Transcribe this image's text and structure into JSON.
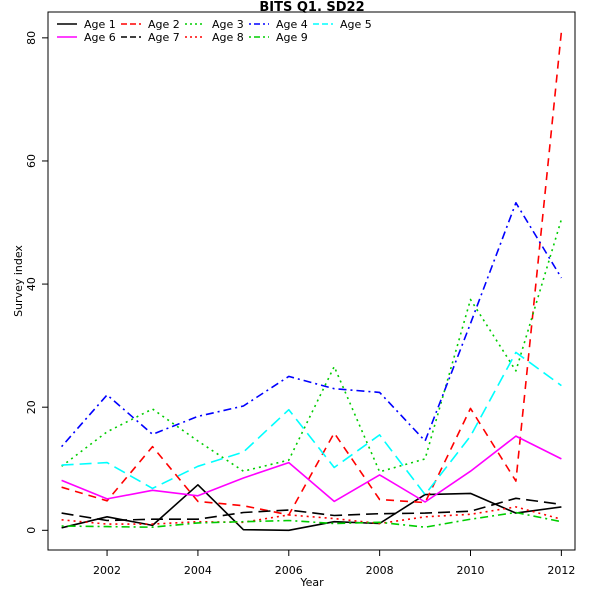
{
  "chart_data": {
    "type": "line",
    "title": "BITS Q1. SD22",
    "xlabel": "Year",
    "ylabel": "Survey index",
    "xlim": [
      2000.7,
      2012.3
    ],
    "ylim": [
      -3.2,
      84.2
    ],
    "x_ticks": [
      2002,
      2004,
      2006,
      2008,
      2010,
      2012
    ],
    "y_ticks": [
      0,
      20,
      40,
      60,
      80
    ],
    "grid": false,
    "legend_position": "top-left",
    "x": [
      2001,
      2002,
      2003,
      2004,
      2005,
      2006,
      2007,
      2008,
      2009,
      2010,
      2011,
      2012
    ],
    "series": [
      {
        "name": "Age 1",
        "color": "#000000",
        "dash": "solid",
        "values": [
          0.4,
          2.2,
          0.8,
          7.4,
          0.1,
          0.0,
          1.4,
          1.1,
          5.8,
          6.0,
          2.8,
          3.8
        ]
      },
      {
        "name": "Age 2",
        "color": "#ff0000",
        "dash": "dashed",
        "values": [
          7.0,
          4.8,
          13.6,
          4.7,
          4.0,
          2.5,
          15.8,
          5.0,
          4.5,
          19.8,
          8.0,
          81.0
        ]
      },
      {
        "name": "Age 3",
        "color": "#00cd00",
        "dash": "dotted",
        "values": [
          10.4,
          16.0,
          19.7,
          14.5,
          9.6,
          11.4,
          26.6,
          9.5,
          11.6,
          37.5,
          25.9,
          50.5
        ]
      },
      {
        "name": "Age 4",
        "color": "#0000ff",
        "dash": "dotdash",
        "values": [
          13.6,
          22.0,
          15.6,
          18.5,
          20.2,
          25.0,
          23.0,
          22.4,
          14.5,
          33.6,
          53.2,
          41.0
        ]
      },
      {
        "name": "Age 5",
        "color": "#00ffff",
        "dash": "longdash",
        "values": [
          10.6,
          11.0,
          6.8,
          10.4,
          12.7,
          19.6,
          10.2,
          15.5,
          5.8,
          15.3,
          28.9,
          23.5
        ]
      },
      {
        "name": "Age 6",
        "color": "#ff00ff",
        "dash": "solid",
        "values": [
          8.1,
          5.1,
          6.5,
          5.6,
          8.5,
          11.0,
          4.7,
          9.0,
          4.6,
          9.6,
          15.3,
          11.6
        ]
      },
      {
        "name": "Age 7",
        "color": "#000000",
        "dash": "longdash",
        "values": [
          2.8,
          1.6,
          1.8,
          1.8,
          2.9,
          3.3,
          2.4,
          2.7,
          2.8,
          3.1,
          5.2,
          4.2
        ]
      },
      {
        "name": "Age 8",
        "color": "#ff0000",
        "dash": "dotted",
        "values": [
          1.7,
          1.0,
          1.0,
          1.4,
          1.3,
          2.5,
          1.9,
          1.1,
          2.2,
          2.6,
          3.8,
          1.8
        ]
      },
      {
        "name": "Age 9",
        "color": "#00cd00",
        "dash": "dotdash",
        "values": [
          0.7,
          0.6,
          0.5,
          1.2,
          1.4,
          1.6,
          1.1,
          1.3,
          0.5,
          1.8,
          2.9,
          1.4
        ]
      }
    ]
  }
}
